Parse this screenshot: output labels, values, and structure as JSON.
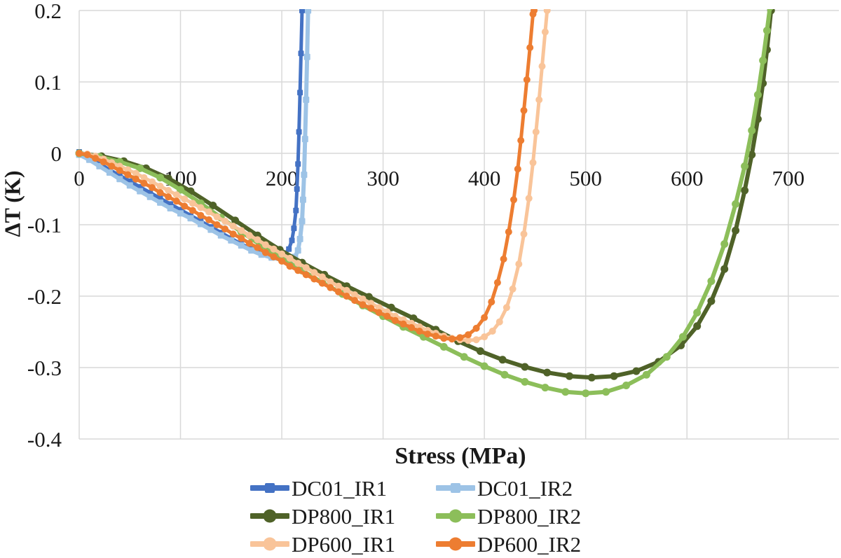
{
  "axis_titles": {
    "x": "Stress (MPa)",
    "y": "ΔT (K)"
  },
  "colors": {
    "gridline": "#D9D9D9",
    "text": "#1a1a1a",
    "dc01_ir1": "#4472C4",
    "dc01_ir2": "#9DC3E6",
    "dp800_ir1": "#4F6228",
    "dp800_ir2": "#8CBE5A",
    "dp600_ir1": "#F9C499",
    "dp600_ir2": "#ED7D31"
  },
  "chart_data": {
    "type": "line",
    "title": "",
    "xlabel": "Stress (MPa)",
    "ylabel": "ΔT (K)",
    "xlim": [
      0,
      750
    ],
    "ylim": [
      -0.4,
      0.2
    ],
    "xticks": [
      "0",
      "100",
      "200",
      "300",
      "400",
      "500",
      "600",
      "700"
    ],
    "yticks": [
      "0.2",
      "0.1",
      "0",
      "-0.1",
      "-0.2",
      "-0.3",
      "-0.4"
    ],
    "grid": true,
    "legend_position": "bottom",
    "legend_columns": 2,
    "series": [
      {
        "name": "DC01_IR1",
        "color": "#4472C4",
        "marker": "square",
        "marker_size": 8,
        "line_width": 5,
        "points": [
          [
            0,
            0.002
          ],
          [
            10,
            -0.006
          ],
          [
            20,
            -0.014
          ],
          [
            30,
            -0.023
          ],
          [
            40,
            -0.031
          ],
          [
            50,
            -0.039
          ],
          [
            60,
            -0.047
          ],
          [
            70,
            -0.055
          ],
          [
            80,
            -0.063
          ],
          [
            90,
            -0.071
          ],
          [
            100,
            -0.079
          ],
          [
            110,
            -0.087
          ],
          [
            120,
            -0.095
          ],
          [
            130,
            -0.103
          ],
          [
            140,
            -0.111
          ],
          [
            150,
            -0.119
          ],
          [
            160,
            -0.127
          ],
          [
            170,
            -0.134
          ],
          [
            180,
            -0.14
          ],
          [
            190,
            -0.143
          ],
          [
            197,
            -0.144
          ],
          [
            203,
            -0.141
          ],
          [
            207,
            -0.134
          ],
          [
            210,
            -0.122
          ],
          [
            212,
            -0.105
          ],
          [
            214,
            -0.08
          ],
          [
            215,
            -0.05
          ],
          [
            216,
            -0.015
          ],
          [
            217,
            0.03
          ],
          [
            218,
            0.085
          ],
          [
            219,
            0.14
          ],
          [
            220,
            0.2
          ]
        ]
      },
      {
        "name": "DC01_IR2",
        "color": "#9DC3E6",
        "marker": "square",
        "marker_size": 9,
        "line_width": 6,
        "points": [
          [
            0,
            -0.002
          ],
          [
            10,
            -0.009
          ],
          [
            20,
            -0.018
          ],
          [
            30,
            -0.027
          ],
          [
            40,
            -0.036
          ],
          [
            50,
            -0.045
          ],
          [
            60,
            -0.053
          ],
          [
            70,
            -0.061
          ],
          [
            80,
            -0.069
          ],
          [
            90,
            -0.077
          ],
          [
            100,
            -0.084
          ],
          [
            110,
            -0.091
          ],
          [
            120,
            -0.099
          ],
          [
            130,
            -0.107
          ],
          [
            140,
            -0.115
          ],
          [
            150,
            -0.122
          ],
          [
            160,
            -0.129
          ],
          [
            170,
            -0.136
          ],
          [
            180,
            -0.142
          ],
          [
            190,
            -0.146
          ],
          [
            200,
            -0.149
          ],
          [
            208,
            -0.149
          ],
          [
            213,
            -0.145
          ],
          [
            216,
            -0.136
          ],
          [
            218,
            -0.12
          ],
          [
            220,
            -0.095
          ],
          [
            221,
            -0.065
          ],
          [
            222,
            -0.03
          ],
          [
            223,
            0.02
          ],
          [
            224,
            0.075
          ],
          [
            225,
            0.135
          ],
          [
            226,
            0.2
          ]
        ]
      },
      {
        "name": "DP800_IR1",
        "color": "#4F6228",
        "marker": "circle",
        "marker_size": 11,
        "line_width": 6,
        "points": [
          [
            0,
            0
          ],
          [
            22,
            -0.004
          ],
          [
            44,
            -0.011
          ],
          [
            66,
            -0.021
          ],
          [
            88,
            -0.035
          ],
          [
            110,
            -0.053
          ],
          [
            132,
            -0.073
          ],
          [
            154,
            -0.094
          ],
          [
            176,
            -0.115
          ],
          [
            198,
            -0.135
          ],
          [
            220,
            -0.153
          ],
          [
            242,
            -0.17
          ],
          [
            264,
            -0.186
          ],
          [
            286,
            -0.201
          ],
          [
            308,
            -0.216
          ],
          [
            330,
            -0.231
          ],
          [
            352,
            -0.247
          ],
          [
            374,
            -0.263
          ],
          [
            396,
            -0.277
          ],
          [
            418,
            -0.289
          ],
          [
            440,
            -0.299
          ],
          [
            462,
            -0.307
          ],
          [
            484,
            -0.312
          ],
          [
            506,
            -0.314
          ],
          [
            528,
            -0.312
          ],
          [
            550,
            -0.305
          ],
          [
            572,
            -0.292
          ],
          [
            594,
            -0.269
          ],
          [
            610,
            -0.242
          ],
          [
            624,
            -0.207
          ],
          [
            637,
            -0.162
          ],
          [
            648,
            -0.108
          ],
          [
            657,
            -0.052
          ],
          [
            664,
            -0.002
          ],
          [
            670,
            0.048
          ],
          [
            675,
            0.098
          ],
          [
            679,
            0.145
          ],
          [
            683,
            0.2
          ]
        ]
      },
      {
        "name": "DP800_IR2",
        "color": "#8CBE5A",
        "marker": "circle",
        "marker_size": 11,
        "line_width": 6,
        "points": [
          [
            0,
            0
          ],
          [
            20,
            -0.005
          ],
          [
            40,
            -0.012
          ],
          [
            60,
            -0.021
          ],
          [
            80,
            -0.034
          ],
          [
            100,
            -0.051
          ],
          [
            120,
            -0.07
          ],
          [
            140,
            -0.09
          ],
          [
            160,
            -0.11
          ],
          [
            180,
            -0.129
          ],
          [
            200,
            -0.147
          ],
          [
            220,
            -0.164
          ],
          [
            240,
            -0.181
          ],
          [
            260,
            -0.197
          ],
          [
            280,
            -0.213
          ],
          [
            300,
            -0.228
          ],
          [
            320,
            -0.243
          ],
          [
            340,
            -0.257
          ],
          [
            360,
            -0.271
          ],
          [
            380,
            -0.285
          ],
          [
            400,
            -0.298
          ],
          [
            420,
            -0.31
          ],
          [
            440,
            -0.32
          ],
          [
            460,
            -0.328
          ],
          [
            480,
            -0.334
          ],
          [
            500,
            -0.336
          ],
          [
            520,
            -0.334
          ],
          [
            540,
            -0.325
          ],
          [
            560,
            -0.31
          ],
          [
            580,
            -0.285
          ],
          [
            596,
            -0.257
          ],
          [
            610,
            -0.223
          ],
          [
            624,
            -0.179
          ],
          [
            637,
            -0.127
          ],
          [
            648,
            -0.071
          ],
          [
            657,
            -0.018
          ],
          [
            664,
            0.032
          ],
          [
            670,
            0.082
          ],
          [
            675,
            0.13
          ],
          [
            679,
            0.172
          ],
          [
            682,
            0.205
          ]
        ]
      },
      {
        "name": "DP600_IR1",
        "color": "#F9C499",
        "marker": "circle",
        "marker_size": 10,
        "line_width": 5,
        "points": [
          [
            0,
            0
          ],
          [
            8,
            -0.001
          ],
          [
            16,
            -0.004
          ],
          [
            24,
            -0.008
          ],
          [
            32,
            -0.013
          ],
          [
            40,
            -0.018
          ],
          [
            48,
            -0.023
          ],
          [
            56,
            -0.028
          ],
          [
            64,
            -0.034
          ],
          [
            72,
            -0.04
          ],
          [
            80,
            -0.046
          ],
          [
            88,
            -0.052
          ],
          [
            96,
            -0.058
          ],
          [
            104,
            -0.064
          ],
          [
            112,
            -0.07
          ],
          [
            120,
            -0.076
          ],
          [
            128,
            -0.082
          ],
          [
            136,
            -0.089
          ],
          [
            144,
            -0.095
          ],
          [
            152,
            -0.102
          ],
          [
            160,
            -0.108
          ],
          [
            168,
            -0.115
          ],
          [
            176,
            -0.121
          ],
          [
            184,
            -0.128
          ],
          [
            192,
            -0.134
          ],
          [
            200,
            -0.141
          ],
          [
            208,
            -0.147
          ],
          [
            216,
            -0.154
          ],
          [
            224,
            -0.16
          ],
          [
            232,
            -0.167
          ],
          [
            240,
            -0.173
          ],
          [
            248,
            -0.18
          ],
          [
            256,
            -0.186
          ],
          [
            264,
            -0.192
          ],
          [
            272,
            -0.198
          ],
          [
            280,
            -0.204
          ],
          [
            288,
            -0.21
          ],
          [
            296,
            -0.216
          ],
          [
            304,
            -0.222
          ],
          [
            312,
            -0.228
          ],
          [
            320,
            -0.233
          ],
          [
            328,
            -0.238
          ],
          [
            336,
            -0.243
          ],
          [
            344,
            -0.248
          ],
          [
            352,
            -0.252
          ],
          [
            360,
            -0.256
          ],
          [
            368,
            -0.259
          ],
          [
            376,
            -0.261
          ],
          [
            384,
            -0.262
          ],
          [
            392,
            -0.261
          ],
          [
            400,
            -0.257
          ],
          [
            408,
            -0.249
          ],
          [
            415,
            -0.236
          ],
          [
            422,
            -0.216
          ],
          [
            428,
            -0.19
          ],
          [
            434,
            -0.155
          ],
          [
            439,
            -0.113
          ],
          [
            444,
            -0.063
          ],
          [
            448,
            -0.013
          ],
          [
            451,
            0.03
          ],
          [
            454,
            0.075
          ],
          [
            457,
            0.122
          ],
          [
            460,
            0.17
          ],
          [
            462,
            0.2
          ]
        ]
      },
      {
        "name": "DP600_IR2",
        "color": "#ED7D31",
        "marker": "circle",
        "marker_size": 10,
        "line_width": 5,
        "points": [
          [
            0,
            0
          ],
          [
            8,
            -0.002
          ],
          [
            16,
            -0.007
          ],
          [
            24,
            -0.012
          ],
          [
            32,
            -0.018
          ],
          [
            40,
            -0.024
          ],
          [
            48,
            -0.03
          ],
          [
            56,
            -0.036
          ],
          [
            64,
            -0.042
          ],
          [
            72,
            -0.048
          ],
          [
            80,
            -0.055
          ],
          [
            88,
            -0.061
          ],
          [
            96,
            -0.067
          ],
          [
            104,
            -0.074
          ],
          [
            112,
            -0.08
          ],
          [
            120,
            -0.087
          ],
          [
            128,
            -0.093
          ],
          [
            136,
            -0.1
          ],
          [
            144,
            -0.106
          ],
          [
            152,
            -0.113
          ],
          [
            160,
            -0.119
          ],
          [
            168,
            -0.126
          ],
          [
            176,
            -0.132
          ],
          [
            184,
            -0.139
          ],
          [
            192,
            -0.145
          ],
          [
            200,
            -0.151
          ],
          [
            208,
            -0.158
          ],
          [
            216,
            -0.164
          ],
          [
            224,
            -0.17
          ],
          [
            232,
            -0.176
          ],
          [
            240,
            -0.182
          ],
          [
            248,
            -0.188
          ],
          [
            256,
            -0.194
          ],
          [
            264,
            -0.2
          ],
          [
            272,
            -0.206
          ],
          [
            280,
            -0.212
          ],
          [
            288,
            -0.217
          ],
          [
            296,
            -0.223
          ],
          [
            304,
            -0.228
          ],
          [
            312,
            -0.234
          ],
          [
            320,
            -0.239
          ],
          [
            328,
            -0.244
          ],
          [
            336,
            -0.249
          ],
          [
            344,
            -0.253
          ],
          [
            352,
            -0.256
          ],
          [
            360,
            -0.259
          ],
          [
            368,
            -0.26
          ],
          [
            376,
            -0.258
          ],
          [
            384,
            -0.254
          ],
          [
            392,
            -0.245
          ],
          [
            400,
            -0.23
          ],
          [
            407,
            -0.208
          ],
          [
            413,
            -0.181
          ],
          [
            419,
            -0.148
          ],
          [
            424,
            -0.11
          ],
          [
            429,
            -0.065
          ],
          [
            433,
            -0.022
          ],
          [
            436,
            0.018
          ],
          [
            439,
            0.06
          ],
          [
            442,
            0.103
          ],
          [
            445,
            0.148
          ],
          [
            448,
            0.195
          ],
          [
            449,
            0.2
          ]
        ]
      }
    ]
  }
}
